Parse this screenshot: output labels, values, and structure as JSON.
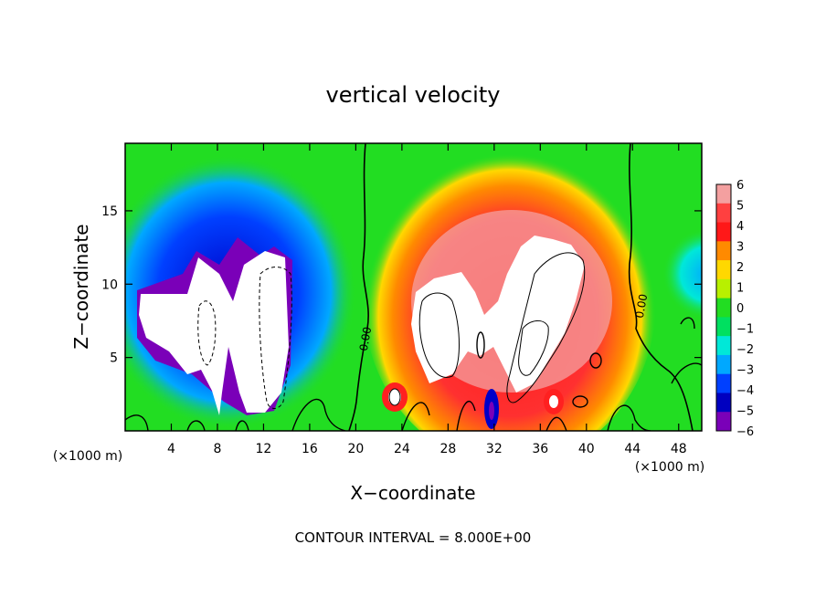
{
  "chart_data": {
    "type": "heatmap",
    "title": "vertical velocity",
    "xlabel": "X−coordinate",
    "ylabel": "Z−coordinate",
    "x_unit_left": "(×1000 m)",
    "x_unit_right": "(×1000 m)",
    "footer": "CONTOUR INTERVAL = 8.000E+00",
    "xlim": [
      0,
      50
    ],
    "ylim": [
      0,
      19.6
    ],
    "x_ticks": [
      4,
      8,
      12,
      16,
      20,
      24,
      28,
      32,
      36,
      40,
      44,
      48
    ],
    "y_ticks": [
      5,
      10,
      15
    ],
    "colorbar": {
      "levels": [
        "6",
        "5",
        "4",
        "3",
        "2",
        "1",
        "0",
        "−1",
        "−2",
        "−3",
        "−4",
        "−5",
        "−6"
      ],
      "colors": [
        "#f4a0a0",
        "#ff4040",
        "#ff1818",
        "#ff8a00",
        "#ffd800",
        "#b8f000",
        "#22dd22",
        "#00e060",
        "#00e8d8",
        "#00a8ff",
        "#0040ff",
        "#0000c0",
        "#7a00b8"
      ]
    },
    "contour_labels": [
      "0.00",
      "0.00"
    ],
    "contour_zero_x_km": [
      21.0,
      43.8
    ]
  }
}
